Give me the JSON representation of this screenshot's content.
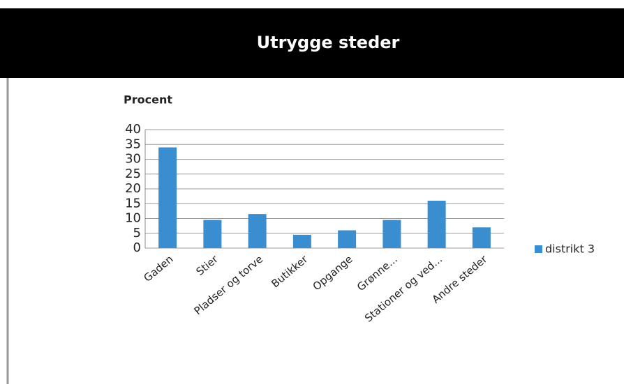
{
  "chart_data": {
    "type": "bar",
    "title": "Utrygge steder",
    "y_label": "Procent",
    "categories": [
      "Gaden",
      "Stier",
      "Pladser og torve",
      "Butikker",
      "Opgange",
      "Grønne...",
      "Stationer og ved...",
      "Andre steder"
    ],
    "series": [
      {
        "name": "distrikt 3",
        "color": "#3a8ed0",
        "values": [
          34,
          9.5,
          11.5,
          4.5,
          6,
          9.5,
          16,
          7
        ]
      }
    ],
    "ylim": [
      0,
      40
    ],
    "yticks": [
      0,
      5,
      10,
      15,
      20,
      25,
      30,
      35,
      40
    ],
    "grid": true,
    "legend": "right"
  }
}
